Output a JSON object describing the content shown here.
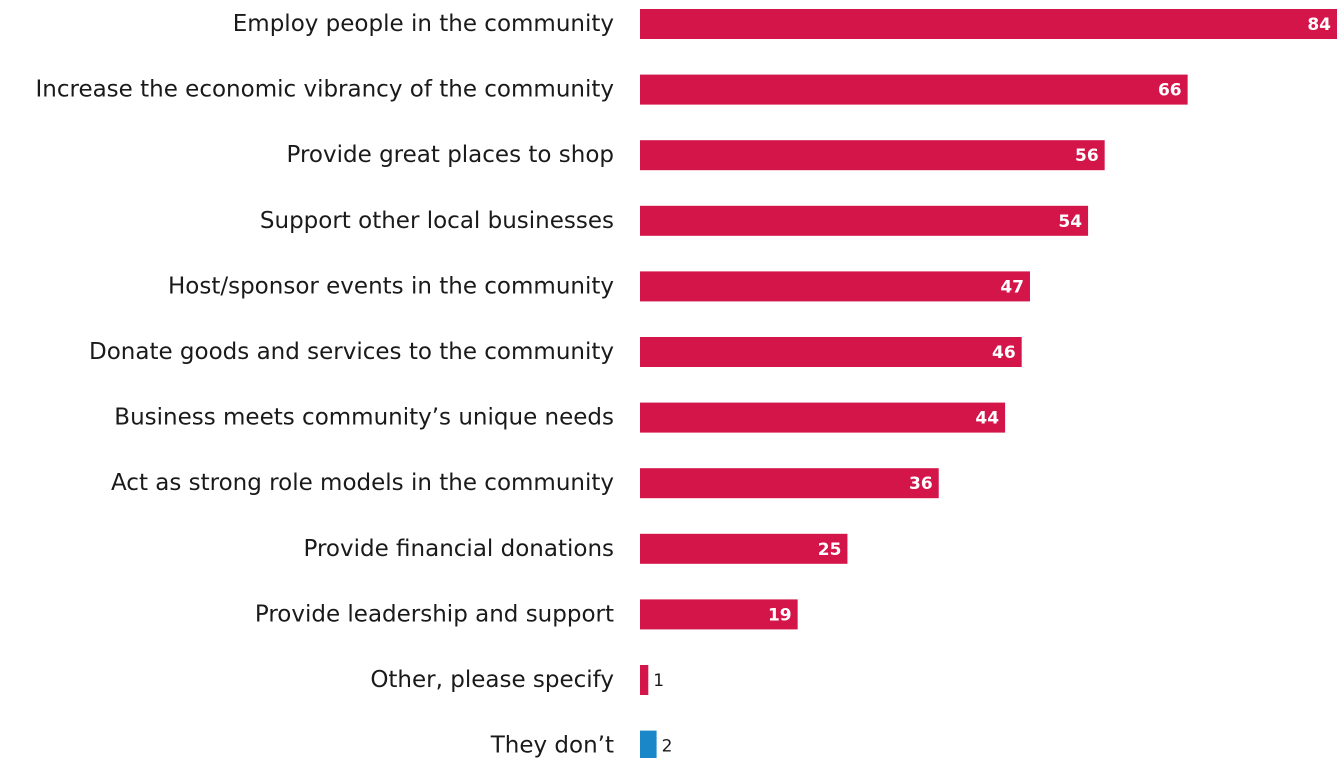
{
  "chart_data": {
    "type": "bar",
    "orientation": "horizontal",
    "categories": [
      "Employ people in the community",
      "Increase the economic vibrancy of the community",
      "Provide great places to shop",
      "Support other local businesses",
      "Host/sponsor events in the community",
      "Donate goods and services to the community",
      "Business meets community’s unique needs",
      "Act as strong role models in the community",
      "Provide financial donations",
      "Provide leadership and support",
      "Other, please specify",
      "They don’t"
    ],
    "values": [
      84,
      66,
      56,
      54,
      47,
      46,
      44,
      36,
      25,
      19,
      1,
      2
    ],
    "value_labels": [
      "84",
      "66",
      "56",
      "54",
      "47",
      "46",
      "44",
      "36",
      "25",
      "19",
      "1",
      "2"
    ],
    "bar_colors": [
      "#d4154a",
      "#d4154a",
      "#d4154a",
      "#d4154a",
      "#d4154a",
      "#d4154a",
      "#d4154a",
      "#d4154a",
      "#d4154a",
      "#d4154a",
      "#d4154a",
      "#1a87c9"
    ],
    "xlim": [
      0,
      84
    ],
    "grid": false,
    "legend": "none",
    "title": "",
    "xlabel": "",
    "ylabel": ""
  }
}
